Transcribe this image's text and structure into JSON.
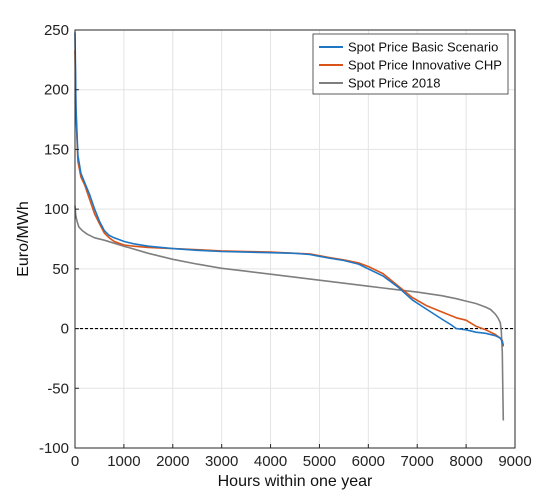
{
  "chart_data": {
    "type": "line",
    "title": "",
    "xlabel": "Hours within one year",
    "ylabel": "Euro/MWh",
    "xlim": [
      0,
      9000
    ],
    "ylim": [
      -100,
      250
    ],
    "xticks": [
      0,
      1000,
      2000,
      3000,
      4000,
      5000,
      6000,
      7000,
      8000,
      9000
    ],
    "yticks": [
      -100,
      -50,
      0,
      50,
      100,
      150,
      200,
      250
    ],
    "xtick_labels": [
      "0",
      "1000",
      "2000",
      "3000",
      "4000",
      "5000",
      "6000",
      "7000",
      "8000",
      "9000"
    ],
    "ytick_labels": [
      "-100",
      "-50",
      "0",
      "50",
      "100",
      "150",
      "200",
      "250"
    ],
    "grid": true,
    "legend_position": "top-right",
    "reference_line": {
      "y": 0,
      "style": "dashed",
      "color": "#000000"
    },
    "series": [
      {
        "name": "Spot Price Basic Scenario",
        "color": "#1f77c4",
        "x": [
          1,
          20,
          60,
          120,
          200,
          300,
          400,
          500,
          600,
          700,
          800,
          1000,
          1200,
          1500,
          2000,
          2500,
          3000,
          3500,
          4000,
          4500,
          4800,
          5000,
          5200,
          5500,
          5800,
          6000,
          6300,
          6600,
          6900,
          7200,
          7500,
          7700,
          7800,
          8000,
          8200,
          8400,
          8600,
          8700,
          8740,
          8760
        ],
        "y": [
          248,
          185,
          145,
          130,
          122,
          112,
          100,
          90,
          82,
          78,
          76,
          73,
          71,
          69,
          67,
          65.5,
          64.5,
          64,
          63.5,
          63,
          62,
          60.5,
          59,
          57,
          54,
          50,
          44,
          35,
          24,
          16,
          8,
          3,
          0,
          -1,
          -3,
          -4,
          -6,
          -8,
          -11,
          -14
        ]
      },
      {
        "name": "Spot Price Innovative CHP",
        "color": "#d95319",
        "x": [
          1,
          20,
          60,
          120,
          200,
          300,
          400,
          500,
          600,
          700,
          800,
          1000,
          1200,
          1500,
          2000,
          2500,
          3000,
          3500,
          4000,
          4500,
          4800,
          5000,
          5200,
          5500,
          5800,
          6000,
          6300,
          6600,
          6900,
          7200,
          7500,
          7800,
          8000,
          8200,
          8400,
          8600,
          8700,
          8740,
          8760
        ],
        "y": [
          233,
          180,
          140,
          127,
          120,
          108,
          96,
          88,
          80,
          76,
          73,
          70,
          69,
          68,
          67,
          66,
          65,
          64.5,
          64,
          63,
          62.5,
          61,
          59.5,
          57.5,
          55,
          52,
          46,
          36,
          26,
          19,
          14,
          9,
          7,
          2,
          -1,
          -5,
          -8,
          -10,
          -15
        ]
      },
      {
        "name": "Spot Price 2018",
        "color": "#7f7f7f",
        "x": [
          1,
          15,
          40,
          80,
          150,
          250,
          400,
          600,
          1000,
          1500,
          2000,
          2500,
          3000,
          3500,
          4000,
          4500,
          5000,
          5500,
          6000,
          6500,
          7000,
          7500,
          7800,
          8000,
          8200,
          8400,
          8500,
          8600,
          8650,
          8700,
          8720,
          8740,
          8750,
          8760
        ],
        "y": [
          103,
          95,
          90,
          85,
          82,
          79,
          76,
          74,
          69,
          63,
          58,
          54,
          50.5,
          48,
          45.5,
          43,
          40.5,
          38,
          35.5,
          33,
          30.5,
          27.5,
          25,
          23,
          21,
          18,
          16,
          12,
          9,
          5,
          -2,
          -20,
          -50,
          -77
        ]
      }
    ]
  }
}
